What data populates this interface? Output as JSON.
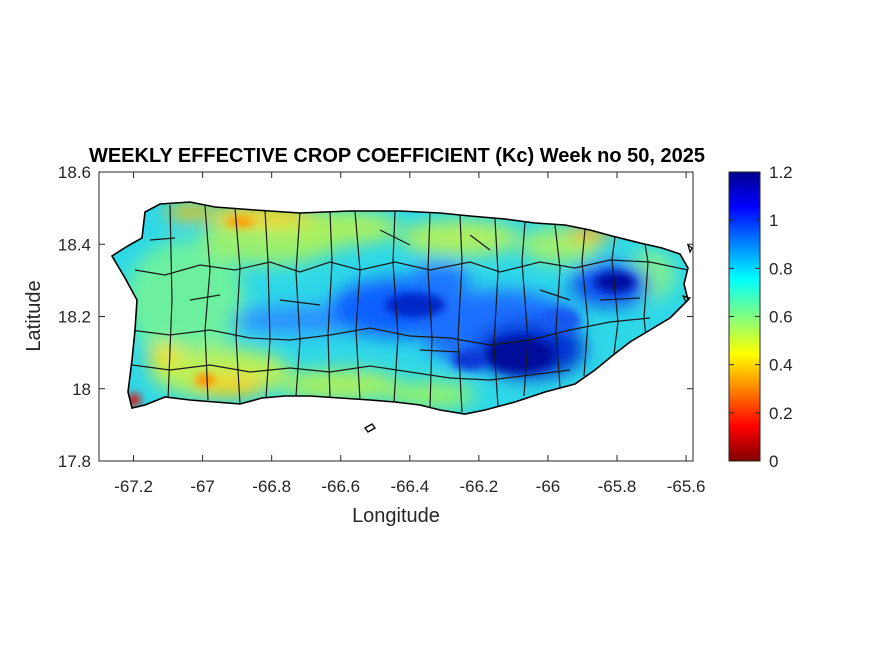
{
  "figure": {
    "title": "WEEKLY EFFECTIVE CROP COEFFICIENT (Kc) Week no 50, 2025",
    "xlabel": "Longitude",
    "ylabel": "Latitude"
  },
  "map": {
    "x_range": [
      -67.3,
      -65.58
    ],
    "y_range": [
      17.8,
      18.6
    ],
    "x_ticks": [
      "-67.2",
      "-67",
      "-66.8",
      "-66.6",
      "-66.4",
      "-66.2",
      "-66",
      "-65.8",
      "-65.6"
    ],
    "y_ticks": [
      "18.6",
      "18.4",
      "18.2",
      "18",
      "17.8"
    ],
    "colorbar_ticks": [
      "1.2",
      "1",
      "0.8",
      "0.6",
      "0.4",
      "0.2",
      "0"
    ],
    "colorbar_range": [
      0,
      1.2
    ],
    "colormap": "jet",
    "colors": {
      "high": "#00008f",
      "mid_high": "#0050ff",
      "mid": "#00e0ff",
      "mid_low": "#80ff80",
      "low_mid": "#ffe000",
      "low": "#ff3000",
      "min": "#800000"
    }
  }
}
